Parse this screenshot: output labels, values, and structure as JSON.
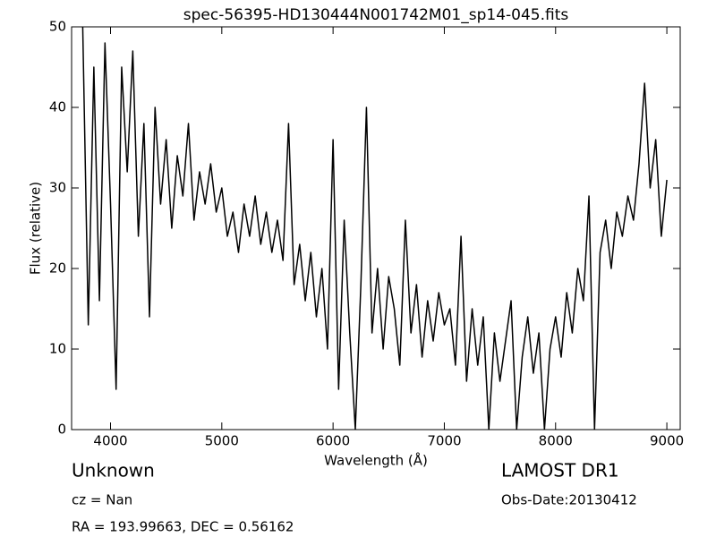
{
  "chart_data": {
    "type": "line",
    "title": "spec-56395-HD130444N001742M01_sp14-045.fits",
    "x_label": "Wavelength (Å)",
    "y_label": "Flux (relative)",
    "color": "#000000",
    "x": [
      3750,
      3800,
      3850,
      3900,
      3950,
      4000,
      4050,
      4100,
      4150,
      4200,
      4250,
      4300,
      4350,
      4400,
      4450,
      4500,
      4550,
      4600,
      4650,
      4700,
      4750,
      4800,
      4850,
      4900,
      4950,
      5000,
      5050,
      5100,
      5150,
      5200,
      5250,
      5300,
      5350,
      5400,
      5450,
      5500,
      5550,
      5600,
      5650,
      5700,
      5750,
      5800,
      5850,
      5900,
      5950,
      6000,
      6050,
      6100,
      6150,
      6200,
      6250,
      6300,
      6350,
      6400,
      6450,
      6500,
      6550,
      6600,
      6650,
      6700,
      6750,
      6800,
      6850,
      6900,
      6950,
      7000,
      7050,
      7100,
      7150,
      7200,
      7250,
      7300,
      7350,
      7400,
      7450,
      7500,
      7550,
      7600,
      7650,
      7700,
      7750,
      7800,
      7850,
      7900,
      7950,
      8000,
      8050,
      8100,
      8150,
      8200,
      8250,
      8300,
      8350,
      8400,
      8450,
      8500,
      8550,
      8600,
      8650,
      8700,
      8750,
      8800,
      8850,
      8900,
      8950,
      9000
    ],
    "values": [
      50,
      13,
      45,
      16,
      48,
      28,
      5,
      45,
      32,
      47,
      24,
      38,
      14,
      40,
      28,
      36,
      25,
      34,
      29,
      38,
      26,
      32,
      28,
      33,
      27,
      30,
      24,
      27,
      22,
      28,
      24,
      29,
      23,
      27,
      22,
      26,
      21,
      38,
      18,
      23,
      16,
      22,
      14,
      20,
      10,
      36,
      5,
      26,
      12,
      0,
      18,
      40,
      12,
      20,
      10,
      19,
      15,
      8,
      26,
      12,
      18,
      9,
      16,
      11,
      17,
      13,
      15,
      8,
      24,
      6,
      15,
      8,
      14,
      0,
      12,
      6,
      11,
      16,
      0,
      9,
      14,
      7,
      12,
      0,
      10,
      14,
      9,
      17,
      12,
      20,
      16,
      29,
      0,
      22,
      26,
      20,
      27,
      24,
      29,
      26,
      33,
      43,
      30,
      36,
      24,
      31
    ],
    "xlim": [
      3650,
      9120
    ],
    "ylim": [
      0,
      50
    ],
    "xticks": [
      4000,
      5000,
      6000,
      7000,
      8000,
      9000
    ],
    "yticks": [
      0,
      10,
      20,
      30,
      40,
      50
    ],
    "info": {
      "object": "Unknown",
      "cz": "cz = Nan",
      "coords": "RA = 193.99663, DEC = 0.56162",
      "survey": "LAMOST DR1",
      "obs_date": "Obs-Date:20130412"
    }
  }
}
